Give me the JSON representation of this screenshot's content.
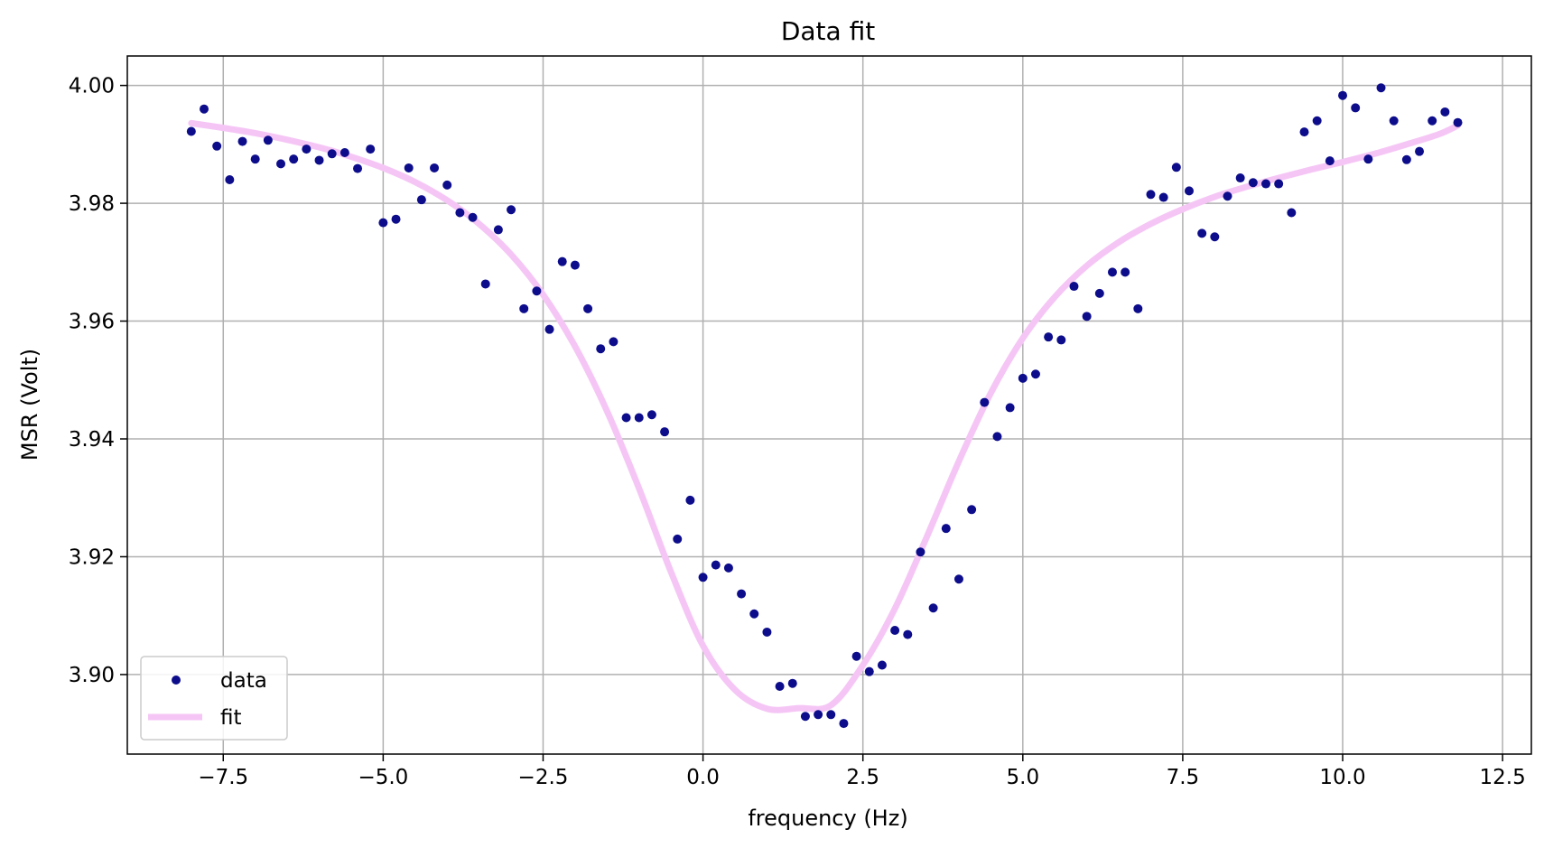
{
  "chart_data": {
    "type": "scatter",
    "title": "Data fit",
    "xlabel": "frequency (Hz)",
    "ylabel": "MSR (Volt)",
    "xlim": [
      -9.0,
      12.95
    ],
    "ylim": [
      3.8865,
      4.005
    ],
    "xticks": [
      -7.5,
      -5.0,
      -2.5,
      0.0,
      2.5,
      5.0,
      7.5,
      10.0,
      12.5
    ],
    "xtick_labels": [
      "−7.5",
      "−5.0",
      "−2.5",
      "0.0",
      "2.5",
      "5.0",
      "7.5",
      "10.0",
      "12.5"
    ],
    "yticks": [
      3.9,
      3.92,
      3.94,
      3.96,
      3.98,
      4.0
    ],
    "ytick_labels": [
      "3.90",
      "3.92",
      "3.94",
      "3.96",
      "3.98",
      "4.00"
    ],
    "grid": true,
    "legend": {
      "position": "lower left",
      "entries": [
        "data",
        "fit"
      ]
    },
    "colors": {
      "data": "#0d0d8c",
      "fit": "#f5c6f5"
    },
    "series": [
      {
        "name": "data",
        "kind": "scatter",
        "points": [
          [
            -8.0,
            3.9922
          ],
          [
            -7.8,
            3.996
          ],
          [
            -7.6,
            3.9897
          ],
          [
            -7.4,
            3.984
          ],
          [
            -7.2,
            3.9905
          ],
          [
            -7.0,
            3.9875
          ],
          [
            -6.8,
            3.9907
          ],
          [
            -6.6,
            3.9867
          ],
          [
            -6.4,
            3.9875
          ],
          [
            -6.2,
            3.9892
          ],
          [
            -6.0,
            3.9873
          ],
          [
            -5.8,
            3.9884
          ],
          [
            -5.6,
            3.9886
          ],
          [
            -5.4,
            3.9859
          ],
          [
            -5.2,
            3.9892
          ],
          [
            -5.0,
            3.9767
          ],
          [
            -4.8,
            3.9773
          ],
          [
            -4.6,
            3.986
          ],
          [
            -4.4,
            3.9806
          ],
          [
            -4.2,
            3.986
          ],
          [
            -4.0,
            3.9831
          ],
          [
            -3.8,
            3.9784
          ],
          [
            -3.6,
            3.9776
          ],
          [
            -3.4,
            3.9663
          ],
          [
            -3.2,
            3.9755
          ],
          [
            -3.0,
            3.9789
          ],
          [
            -2.8,
            3.9621
          ],
          [
            -2.6,
            3.9651
          ],
          [
            -2.4,
            3.9586
          ],
          [
            -2.2,
            3.9701
          ],
          [
            -2.0,
            3.9695
          ],
          [
            -1.8,
            3.9621
          ],
          [
            -1.6,
            3.9553
          ],
          [
            -1.4,
            3.9565
          ],
          [
            -1.2,
            3.9436
          ],
          [
            -1.0,
            3.9436
          ],
          [
            -0.8,
            3.9441
          ],
          [
            -0.6,
            3.9412
          ],
          [
            -0.4,
            3.923
          ],
          [
            -0.2,
            3.9296
          ],
          [
            0.0,
            3.9165
          ],
          [
            0.2,
            3.9186
          ],
          [
            0.4,
            3.9181
          ],
          [
            0.6,
            3.9137
          ],
          [
            0.8,
            3.9103
          ],
          [
            1.0,
            3.9072
          ],
          [
            1.2,
            3.898
          ],
          [
            1.4,
            3.8985
          ],
          [
            1.6,
            3.8929
          ],
          [
            1.8,
            3.8932
          ],
          [
            2.0,
            3.8932
          ],
          [
            2.2,
            3.8917
          ],
          [
            2.4,
            3.9031
          ],
          [
            2.6,
            3.9005
          ],
          [
            2.8,
            3.9016
          ],
          [
            3.0,
            3.9075
          ],
          [
            3.2,
            3.9068
          ],
          [
            3.4,
            3.9208
          ],
          [
            3.6,
            3.9113
          ],
          [
            3.8,
            3.9248
          ],
          [
            4.0,
            3.9162
          ],
          [
            4.2,
            3.928
          ],
          [
            4.4,
            3.9462
          ],
          [
            4.6,
            3.9404
          ],
          [
            4.8,
            3.9453
          ],
          [
            5.0,
            3.9503
          ],
          [
            5.2,
            3.951
          ],
          [
            5.4,
            3.9573
          ],
          [
            5.6,
            3.9568
          ],
          [
            5.8,
            3.9659
          ],
          [
            6.0,
            3.9608
          ],
          [
            6.2,
            3.9647
          ],
          [
            6.4,
            3.9683
          ],
          [
            6.6,
            3.9683
          ],
          [
            6.8,
            3.9621
          ],
          [
            7.0,
            3.9815
          ],
          [
            7.2,
            3.981
          ],
          [
            7.4,
            3.9861
          ],
          [
            7.6,
            3.9821
          ],
          [
            7.8,
            3.9749
          ],
          [
            8.0,
            3.9743
          ],
          [
            8.2,
            3.9812
          ],
          [
            8.4,
            3.9843
          ],
          [
            8.6,
            3.9835
          ],
          [
            8.8,
            3.9833
          ],
          [
            9.0,
            3.9833
          ],
          [
            9.2,
            3.9784
          ],
          [
            9.4,
            3.9921
          ],
          [
            9.6,
            3.994
          ],
          [
            9.8,
            3.9872
          ],
          [
            10.0,
            3.9983
          ],
          [
            10.2,
            3.9962
          ],
          [
            10.4,
            3.9875
          ],
          [
            10.6,
            3.9996
          ],
          [
            10.8,
            3.994
          ],
          [
            11.0,
            3.9874
          ],
          [
            11.2,
            3.9888
          ],
          [
            11.4,
            3.994
          ],
          [
            11.6,
            3.9955
          ],
          [
            11.8,
            3.9937
          ]
        ]
      },
      {
        "name": "fit",
        "kind": "line",
        "points": [
          [
            -8.0,
            3.9936
          ],
          [
            -7.0,
            3.9919
          ],
          [
            -6.0,
            3.9895
          ],
          [
            -5.5,
            3.9879
          ],
          [
            -5.0,
            3.986
          ],
          [
            -4.5,
            3.9836
          ],
          [
            -4.0,
            3.9805
          ],
          [
            -3.5,
            3.9765
          ],
          [
            -3.0,
            3.9713
          ],
          [
            -2.5,
            3.9645
          ],
          [
            -2.0,
            3.9557
          ],
          [
            -1.5,
            3.9447
          ],
          [
            -1.0,
            3.9316
          ],
          [
            -0.5,
            3.9174
          ],
          [
            0.0,
            3.9049
          ],
          [
            0.5,
            3.8974
          ],
          [
            1.0,
            3.8942
          ],
          [
            1.5,
            3.8943
          ],
          [
            2.0,
            3.8948
          ],
          [
            2.5,
            3.9016
          ],
          [
            3.0,
            3.9112
          ],
          [
            3.5,
            3.9234
          ],
          [
            4.0,
            3.9362
          ],
          [
            4.5,
            3.9478
          ],
          [
            5.0,
            3.9571
          ],
          [
            5.5,
            3.9641
          ],
          [
            6.0,
            3.9694
          ],
          [
            6.5,
            3.9734
          ],
          [
            7.0,
            3.9765
          ],
          [
            7.5,
            3.979
          ],
          [
            8.0,
            3.9811
          ],
          [
            8.5,
            3.9828
          ],
          [
            9.0,
            3.9843
          ],
          [
            9.5,
            3.9857
          ],
          [
            10.0,
            3.987
          ],
          [
            10.5,
            3.9884
          ],
          [
            11.0,
            3.99
          ],
          [
            11.5,
            3.9917
          ],
          [
            11.8,
            3.9932
          ]
        ]
      }
    ]
  }
}
